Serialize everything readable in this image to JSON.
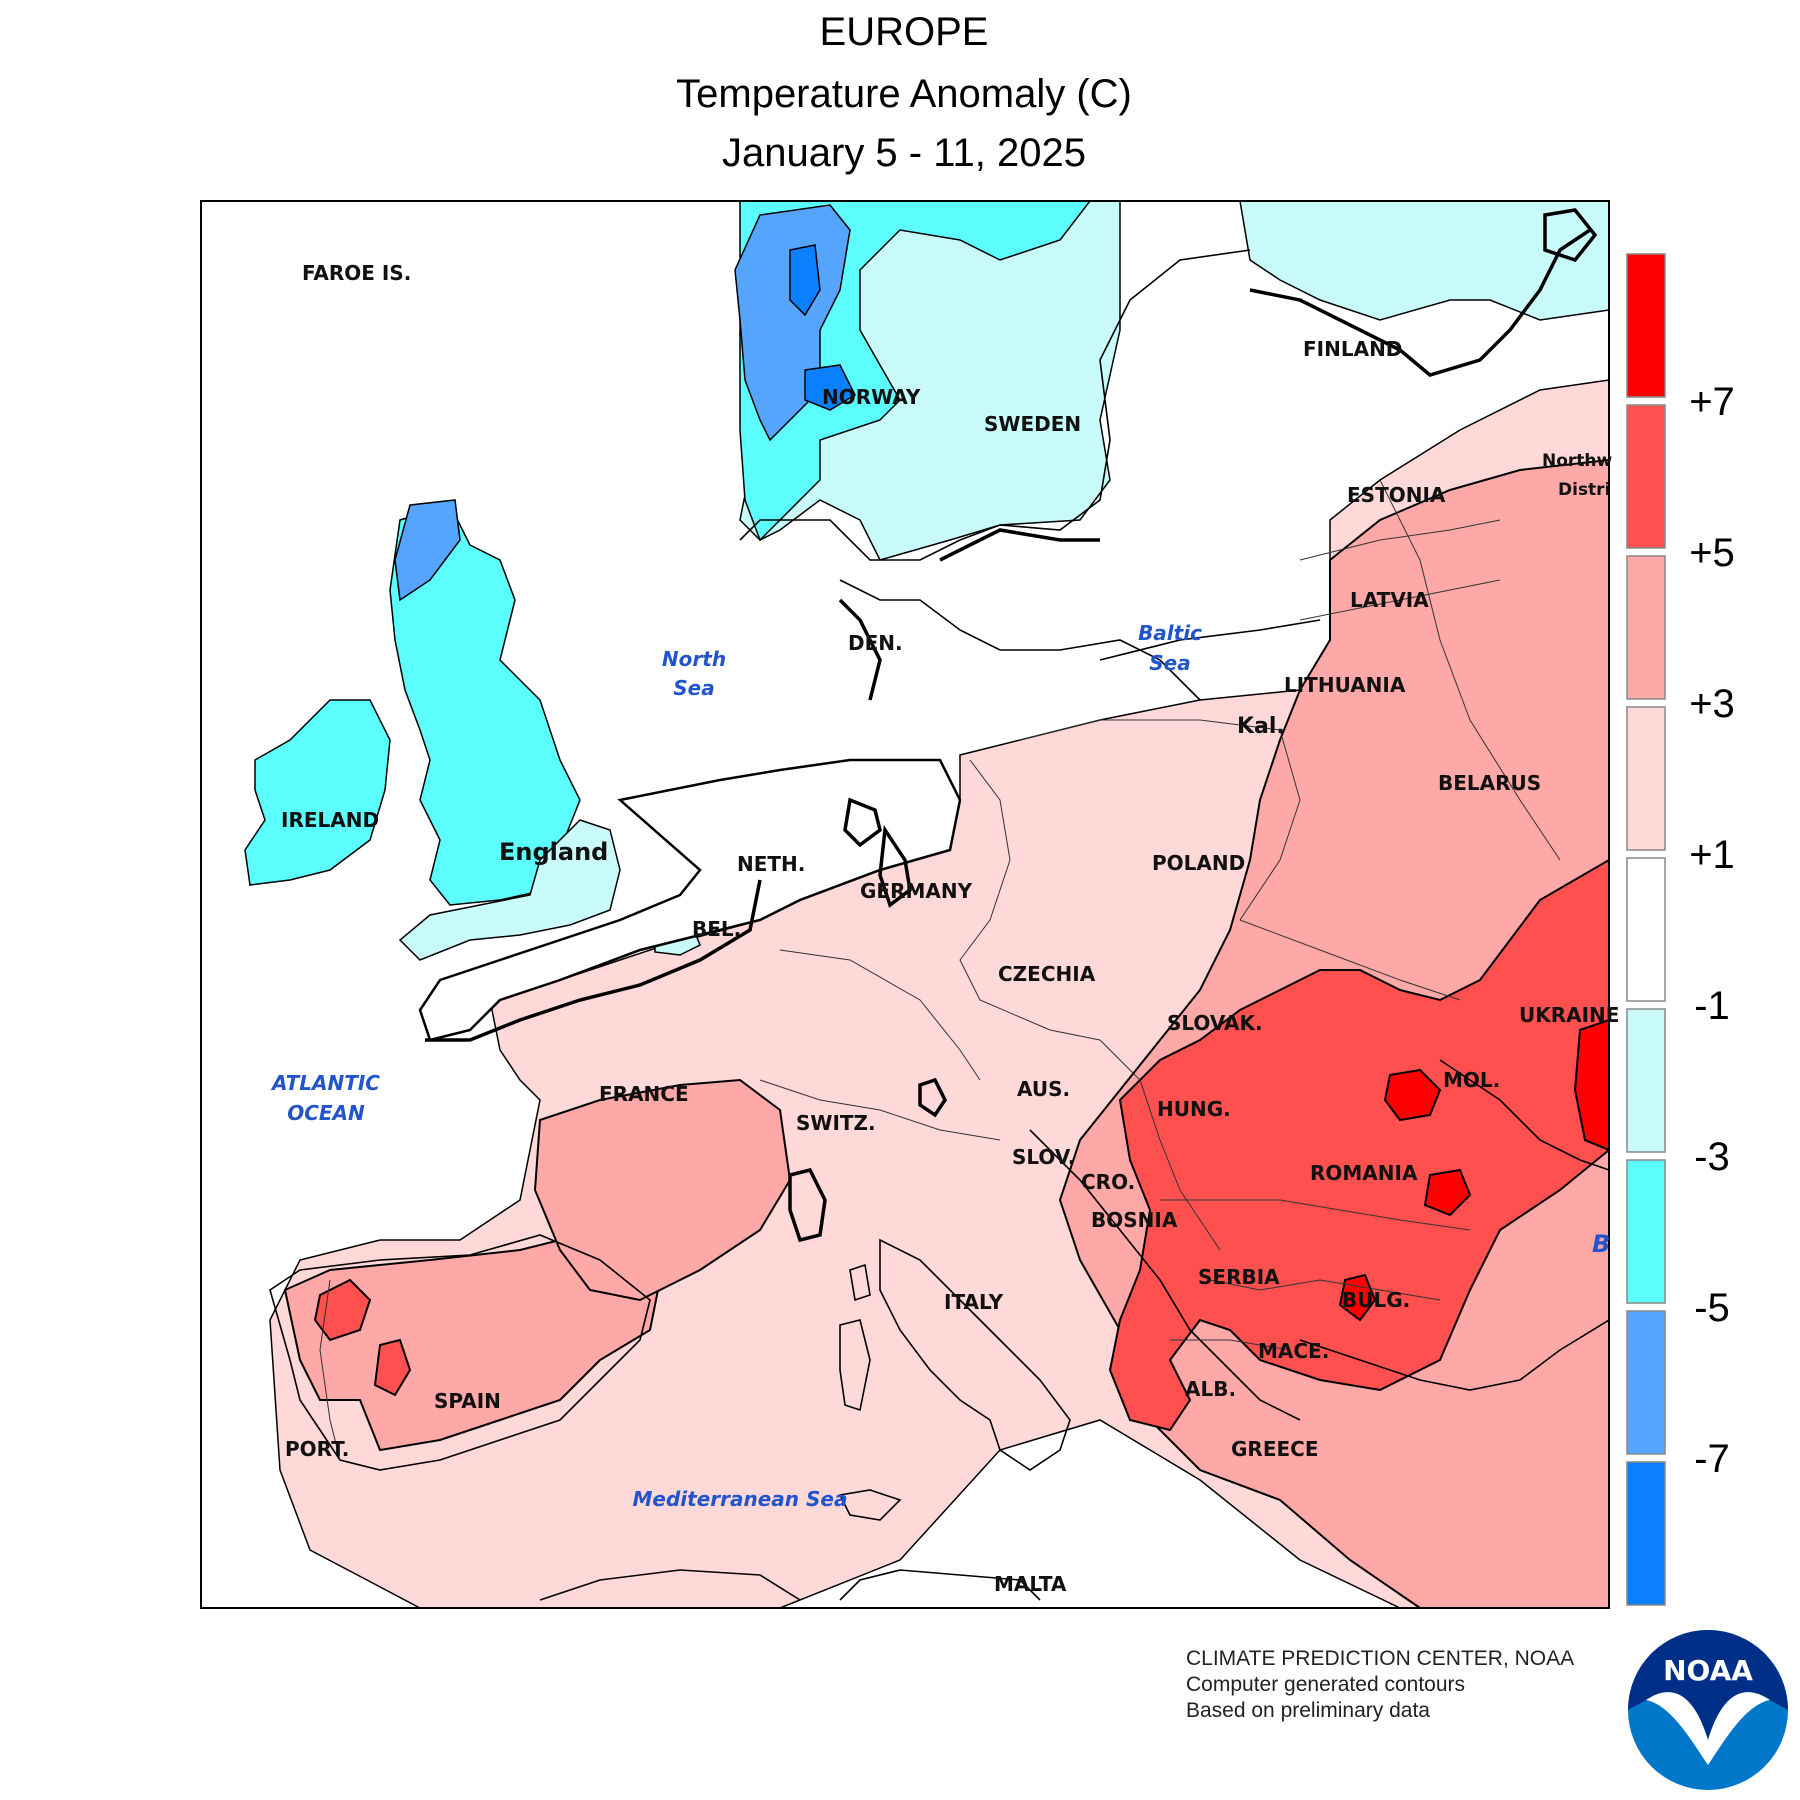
{
  "titles": {
    "region": "EUROPE",
    "variable": "Temperature Anomaly (C)",
    "period": "January 5 - 11, 2025"
  },
  "legend": {
    "colors": [
      "#ff0000",
      "#ff5050",
      "#ffa8a8",
      "#ffd8d8",
      "#ffffff",
      "#c8fafa",
      "#5cfdfd",
      "#55a5ff",
      "#0a80ff"
    ],
    "ticks": [
      "+7",
      "+5",
      "+3",
      "+1",
      "-1",
      "-3",
      "-5",
      "-7"
    ]
  },
  "labels": {
    "faroe": "FAROE IS.",
    "norway": "NORWAY",
    "sweden": "SWEDEN",
    "finland": "FINLAND",
    "estonia": "ESTONIA",
    "latvia": "LATVIA",
    "lithuania": "LITHUANIA",
    "kal": "Kal.",
    "northwest_1": "Northw",
    "northwest_2": "Distri",
    "ireland": "IRELAND",
    "england": "England",
    "denmark": "DEN.",
    "netherlands": "NETH.",
    "belgium": "BEL.",
    "germany": "GERMANY",
    "poland": "POLAND",
    "belarus": "BELARUS",
    "ukraine": "UKRAINE",
    "czechia": "CZECHIA",
    "slovakia": "SLOVAK.",
    "austria": "AUS.",
    "hungary": "HUNG.",
    "moldova": "MOL.",
    "switzerland": "SWITZ.",
    "france": "FRANCE",
    "slovenia": "SLOV.",
    "croatia": "CRO.",
    "bosnia": "BOSNIA",
    "romania": "ROMANIA",
    "serbia": "SERBIA",
    "bulgaria": "BULG.",
    "macedonia": "MACE.",
    "albania": "ALB.",
    "greece": "GREECE",
    "italy": "ITALY",
    "spain": "SPAIN",
    "portugal": "PORT.",
    "malta": "MALTA",
    "black_sea_fragment": "B"
  },
  "seas": {
    "north_1": "North",
    "north_2": "Sea",
    "baltic_1": "Baltic",
    "baltic_2": "Sea",
    "atlantic_1": "ATLANTIC",
    "atlantic_2": "OCEAN",
    "mediterranean": "Mediterranean Sea"
  },
  "credits": {
    "line1": "CLIMATE PREDICTION CENTER, NOAA",
    "line2": "Computer generated contours",
    "line3": "Based on preliminary data"
  },
  "logo": {
    "text": "NOAA"
  }
}
